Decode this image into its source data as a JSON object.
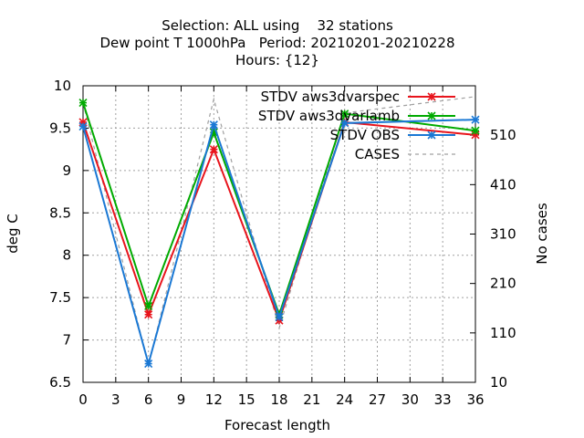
{
  "chart_data": {
    "type": "line",
    "title_lines": [
      "Selection: ALL using    32 stations",
      "Dew point T 1000hPa   Period: 20210201-20210228",
      "Hours: {12}"
    ],
    "xlabel": "Forecast length",
    "ylabel": "deg C",
    "y2label": "No cases",
    "x": [
      0,
      6,
      12,
      18,
      24,
      36
    ],
    "xlim": [
      0,
      36
    ],
    "ylim": [
      6.5,
      10
    ],
    "y2lim": [
      10,
      610
    ],
    "xticks": [
      0,
      3,
      6,
      9,
      12,
      15,
      18,
      21,
      24,
      27,
      30,
      33,
      36
    ],
    "yticks": [
      6.5,
      7,
      7.5,
      8,
      8.5,
      9,
      9.5,
      10
    ],
    "ytick_labels": [
      "6.5",
      "7",
      "7.5",
      "8",
      "8.5",
      "9",
      "9.5",
      "10"
    ],
    "y2ticks": [
      10,
      110,
      210,
      310,
      410,
      510
    ],
    "grid": true,
    "legend_position": "top-right",
    "series": [
      {
        "name": "STDV aws3dvarspec",
        "color": "#e8141c",
        "marker": "asterisk",
        "values": [
          9.57,
          7.3,
          9.25,
          7.23,
          9.57,
          9.42
        ]
      },
      {
        "name": "STDV aws3dvarlamb",
        "color": "#00aa00",
        "marker": "asterisk",
        "values": [
          9.8,
          7.4,
          9.45,
          7.3,
          9.67,
          9.47
        ]
      },
      {
        "name": "STDV OBS",
        "color": "#1a78d4",
        "marker": "asterisk",
        "values": [
          9.52,
          6.72,
          9.54,
          7.27,
          9.56,
          9.6
        ]
      },
      {
        "name": "CASES",
        "color": "#a0a0a0",
        "marker": "none",
        "dashed": true,
        "axis": "y2",
        "values": [
          575,
          45,
          583,
          120,
          555,
          588
        ]
      }
    ]
  }
}
